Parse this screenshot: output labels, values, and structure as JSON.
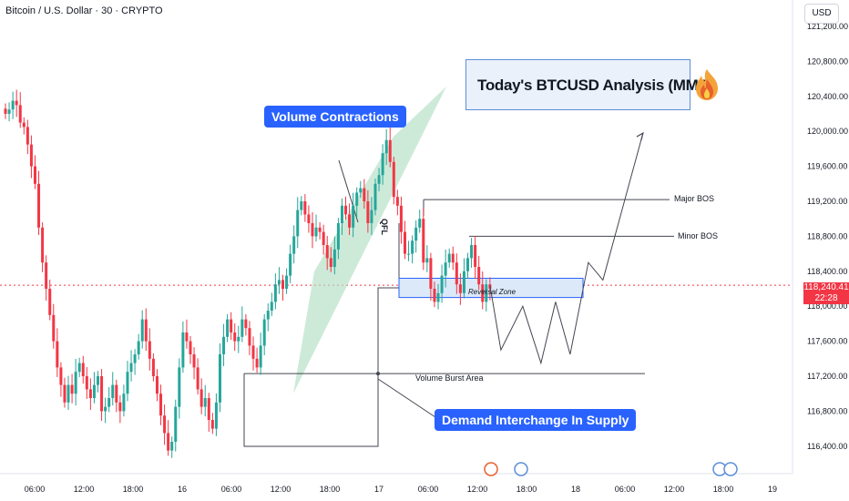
{
  "header": {
    "symbol_line": "Bitcoin / U.S. Dollar · 30 · CRYPTO",
    "currency_label": "USD"
  },
  "title_box": {
    "text": "Today's BTCUSD Analysis (MMC)",
    "icon": "fire-icon"
  },
  "callouts": {
    "volume_contractions": "Volume Contractions",
    "demand_interchange": "Demand Interchange In Supply"
  },
  "annotations": {
    "major_bos": "Major BOS",
    "minor_bos": "Minor BOS",
    "reversal_zone": "Reversal Zone",
    "volume_burst": "Volume Burst Area",
    "qfl": "QFL"
  },
  "price_tag": {
    "price": "118,240.41",
    "countdown": "22:28"
  },
  "colors": {
    "up": "#26a69a",
    "down": "#f23645",
    "callout": "#2962ff",
    "wedge": "#b2dfc4",
    "zone": "#dce9f8",
    "zone_border": "#2962ff",
    "line": "#434651"
  },
  "chart_data": {
    "type": "candlestick",
    "title": "",
    "y_axis": {
      "ticks": [
        121200,
        120800,
        120400,
        120000,
        119600,
        119200,
        118800,
        118400,
        118000,
        117600,
        117200,
        116800,
        116400
      ],
      "tick_labels": [
        "121,200.00",
        "120,800.00",
        "120,400.00",
        "120,000.00",
        "119,600.00",
        "119,200.00",
        "118,800.00",
        "118,400.00",
        "118,000.00",
        "117,600.00",
        "117,200.00",
        "116,800.00",
        "116,400.00"
      ],
      "range": [
        116200,
        121400
      ]
    },
    "x_axis": {
      "ticks": [
        "06:00",
        "12:00",
        "18:00",
        "16",
        "06:00",
        "12:00",
        "18:00",
        "17",
        "06:00",
        "12:00",
        "18:00",
        "18",
        "06:00",
        "12:00",
        "18:00",
        "19"
      ]
    },
    "current_price": 118240.41,
    "levels": {
      "major_bos": 119220,
      "minor_bos": 118800,
      "volume_burst": 117230
    },
    "reversal_zone": [
      118100,
      118320
    ],
    "closes": [
      120200,
      120250,
      120350,
      120300,
      120100,
      120050,
      119850,
      119600,
      119400,
      118900,
      118500,
      118200,
      117900,
      117600,
      117300,
      117100,
      116900,
      117100,
      117000,
      117250,
      117350,
      117200,
      117050,
      116950,
      117100,
      117200,
      116800,
      116850,
      116950,
      117100,
      116900,
      116800,
      117000,
      117250,
      117350,
      117450,
      117600,
      117850,
      117600,
      117400,
      117200,
      117000,
      116750,
      116550,
      116350,
      116450,
      116850,
      117300,
      117700,
      117600,
      117450,
      117300,
      117050,
      116850,
      116950,
      116700,
      116600,
      116900,
      117450,
      117650,
      117850,
      117700,
      117600,
      117650,
      117850,
      117750,
      117550,
      117400,
      117300,
      117550,
      117850,
      117950,
      118050,
      118250,
      118300,
      118200,
      118350,
      118600,
      118800,
      119100,
      119200,
      119050,
      118950,
      118800,
      118900,
      118850,
      118700,
      118550,
      118450,
      118650,
      118950,
      119150,
      119050,
      118900,
      119150,
      119300,
      119350,
      119200,
      118950,
      119100,
      119400,
      119500,
      119750,
      119900,
      119650,
      119250,
      119150,
      118850,
      118600,
      118600,
      118750,
      118900,
      119000,
      118500,
      118550,
      118200,
      118050,
      118150,
      118350,
      118500,
      118600,
      118500,
      118250,
      118150,
      118400,
      118550,
      118700,
      118450,
      118250,
      118050,
      118250,
      118200
    ],
    "projection": [
      {
        "t": 0,
        "p": 118240
      },
      {
        "t": 3,
        "p": 117500
      },
      {
        "t": 9,
        "p": 118000
      },
      {
        "t": 14,
        "p": 117350
      },
      {
        "t": 18,
        "p": 118050
      },
      {
        "t": 22,
        "p": 117450
      },
      {
        "t": 27,
        "p": 118500
      },
      {
        "t": 31,
        "p": 118300
      },
      {
        "t": 42,
        "p": 119980
      }
    ]
  }
}
